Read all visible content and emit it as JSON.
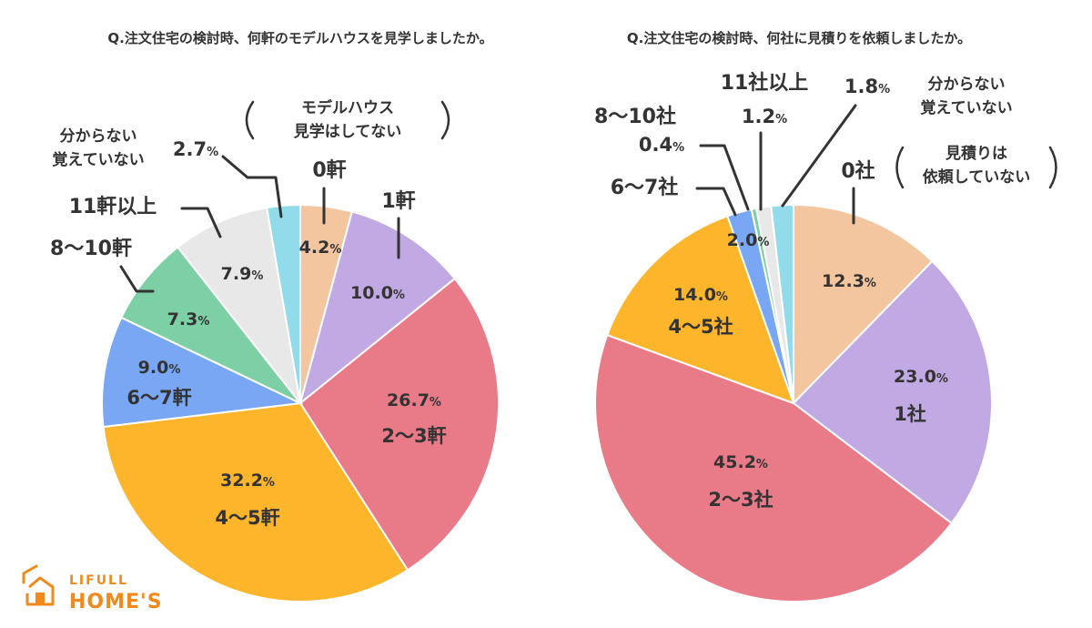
{
  "chart_data": [
    {
      "type": "pie",
      "title": "Q.注文住宅の検討時、何軒のモデルハウスを見学しましたか。",
      "slices": [
        {
          "label": "0軒",
          "value": 4.2,
          "value_text": "4.2",
          "color": "#f4c6a0"
        },
        {
          "label": "1軒",
          "value": 10.0,
          "value_text": "10.0",
          "color": "#c1a9e4"
        },
        {
          "label": "2〜3軒",
          "value": 26.7,
          "value_text": "26.7",
          "color": "#e97a88"
        },
        {
          "label": "4〜5軒",
          "value": 32.2,
          "value_text": "32.2",
          "color": "#fdb52b"
        },
        {
          "label": "6〜7軒",
          "value": 9.0,
          "value_text": "9.0",
          "color": "#7aa7f4"
        },
        {
          "label": "8〜10軒",
          "value": 7.3,
          "value_text": "7.3",
          "color": "#7dd0a6"
        },
        {
          "label": "11軒以上",
          "value": 7.9,
          "value_text": "7.9",
          "color": "#e8e8e8"
        },
        {
          "label_lines": [
            "分からない",
            "覚えていない"
          ],
          "value": 2.7,
          "value_text": "2.7",
          "color": "#92dbea"
        }
      ],
      "notes": {
        "zero_label_lines": [
          "モデルハウス",
          "見学はしてない"
        ]
      }
    },
    {
      "type": "pie",
      "title": "Q.注文住宅の検討時、何社に見積りを依頼しましたか。",
      "slices": [
        {
          "label": "0社",
          "value": 12.3,
          "value_text": "12.3",
          "color": "#f4c6a0"
        },
        {
          "label": "1社",
          "value": 23.0,
          "value_text": "23.0",
          "color": "#c1a9e4"
        },
        {
          "label": "2〜3社",
          "value": 45.2,
          "value_text": "45.2",
          "color": "#e97a88"
        },
        {
          "label": "4〜5社",
          "value": 14.0,
          "value_text": "14.0",
          "color": "#fdb52b"
        },
        {
          "label": "6〜7社",
          "value": 2.0,
          "value_text": "2.0",
          "color": "#7aa7f4"
        },
        {
          "label": "8〜10社",
          "value": 0.4,
          "value_text": "0.4",
          "color": "#7dd0a6"
        },
        {
          "label": "11社以上",
          "value": 1.2,
          "value_text": "1.2",
          "color": "#e8e8e8"
        },
        {
          "label_lines": [
            "分からない",
            "覚えていない"
          ],
          "value": 1.8,
          "value_text": "1.8",
          "color": "#92dbea"
        }
      ],
      "notes": {
        "zero_label_lines": [
          "見積りは",
          "依頼していない"
        ]
      }
    }
  ],
  "percent_sign": "%",
  "logo": {
    "line1": "LIFULL",
    "line2": "HOME'S",
    "color": "#f08a1c"
  }
}
